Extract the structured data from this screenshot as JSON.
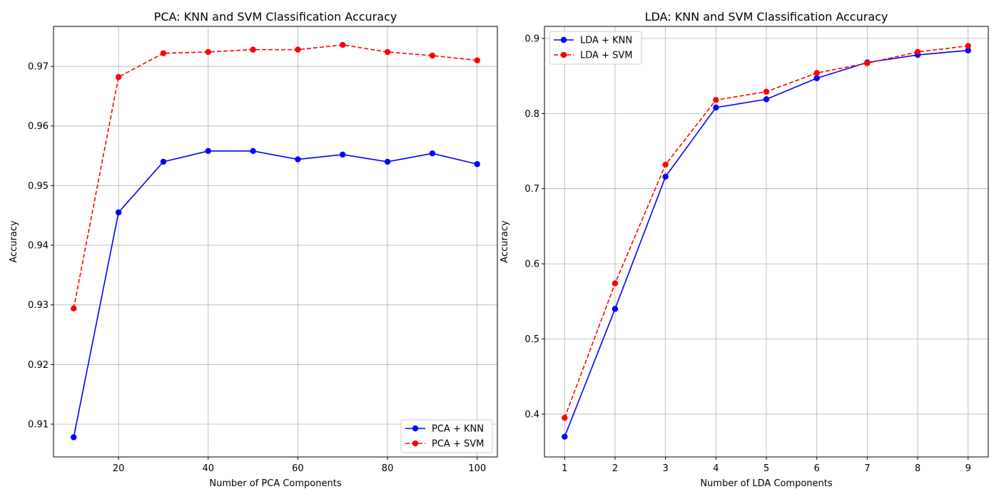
{
  "chart_data": [
    {
      "type": "line",
      "title": "PCA: KNN and SVM Classification Accuracy",
      "xlabel": "Number of PCA Components",
      "ylabel": "Accuracy",
      "x": [
        10,
        20,
        30,
        40,
        50,
        60,
        70,
        80,
        90,
        100
      ],
      "xlim": [
        5.5,
        104.5
      ],
      "ylim": [
        0.9045,
        0.9767
      ],
      "xticks": [
        20,
        40,
        60,
        80,
        100
      ],
      "xtick_labels": [
        "20",
        "40",
        "60",
        "80",
        "100"
      ],
      "yticks": [
        0.91,
        0.92,
        0.93,
        0.94,
        0.95,
        0.96,
        0.97
      ],
      "ytick_labels": [
        "0.91",
        "0.92",
        "0.93",
        "0.94",
        "0.95",
        "0.96",
        "0.97"
      ],
      "grid": true,
      "legend_position": "lower-right",
      "series": [
        {
          "name": "PCA + KNN",
          "color": "#0000ff",
          "line_style": "solid",
          "marker": "circle",
          "values": [
            0.9078,
            0.9455,
            0.954,
            0.9558,
            0.9558,
            0.9544,
            0.9552,
            0.954,
            0.9554,
            0.9536
          ]
        },
        {
          "name": "PCA + SVM",
          "color": "#ff0000",
          "line_style": "dashed",
          "marker": "circle",
          "values": [
            0.9294,
            0.9682,
            0.9722,
            0.9724,
            0.9728,
            0.9728,
            0.9736,
            0.9724,
            0.9718,
            0.971
          ]
        }
      ]
    },
    {
      "type": "line",
      "title": "LDA: KNN and SVM Classification Accuracy",
      "xlabel": "Number of LDA Components",
      "ylabel": "Accuracy",
      "x": [
        1,
        2,
        3,
        4,
        5,
        6,
        7,
        8,
        9
      ],
      "xlim": [
        0.6,
        9.4
      ],
      "ylim": [
        0.343,
        0.916
      ],
      "xticks": [
        1,
        2,
        3,
        4,
        5,
        6,
        7,
        8,
        9
      ],
      "xtick_labels": [
        "1",
        "2",
        "3",
        "4",
        "5",
        "6",
        "7",
        "8",
        "9"
      ],
      "yticks": [
        0.4,
        0.5,
        0.6,
        0.7,
        0.8,
        0.9
      ],
      "ytick_labels": [
        "0.4",
        "0.5",
        "0.6",
        "0.7",
        "0.8",
        "0.9"
      ],
      "grid": true,
      "legend_position": "upper-left",
      "series": [
        {
          "name": "LDA + KNN",
          "color": "#0000ff",
          "line_style": "solid",
          "marker": "circle",
          "values": [
            0.37,
            0.54,
            0.716,
            0.808,
            0.819,
            0.847,
            0.868,
            0.878,
            0.884
          ]
        },
        {
          "name": "LDA + SVM",
          "color": "#ff0000",
          "line_style": "dashed",
          "marker": "circle",
          "values": [
            0.395,
            0.574,
            0.732,
            0.818,
            0.829,
            0.854,
            0.867,
            0.882,
            0.89
          ]
        }
      ]
    }
  ]
}
